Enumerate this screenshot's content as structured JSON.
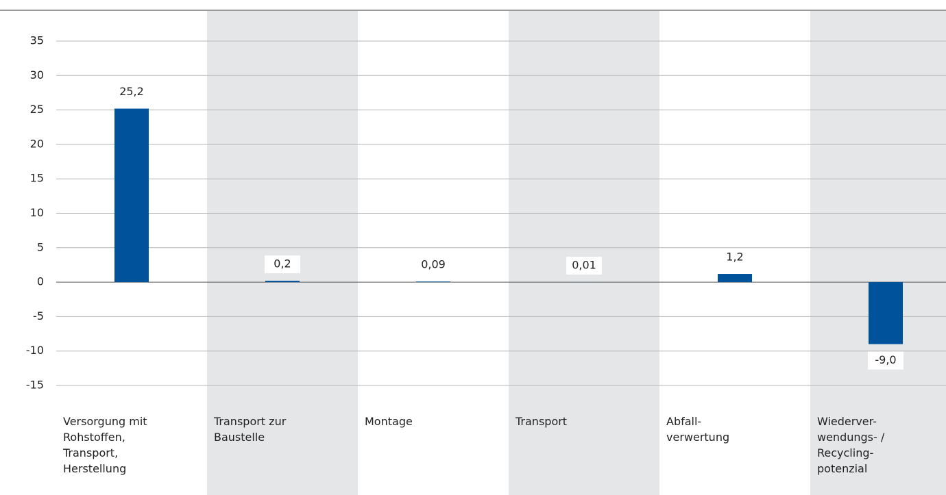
{
  "chart_data": {
    "type": "bar",
    "categories": [
      "Versorgung mit\nRohstoffen,\nTransport,\nHerstellung",
      "Transport zur\nBaustelle",
      "Montage",
      "Transport",
      "Abfall-\nverwertung",
      "Wiederver-\nwendungs- /\nRecycling-\npotenzial"
    ],
    "values": [
      25.2,
      0.2,
      0.09,
      0.01,
      1.2,
      -9.0
    ],
    "value_labels": [
      "25,2",
      "0,2",
      "0,09",
      "0,01",
      "1,2",
      "-9,0"
    ],
    "color": "#00539b",
    "ylim": [
      -15,
      35
    ],
    "yticks": [
      -15,
      -10,
      -5,
      0,
      5,
      10,
      15,
      20,
      25,
      30,
      35
    ],
    "grid": true
  }
}
